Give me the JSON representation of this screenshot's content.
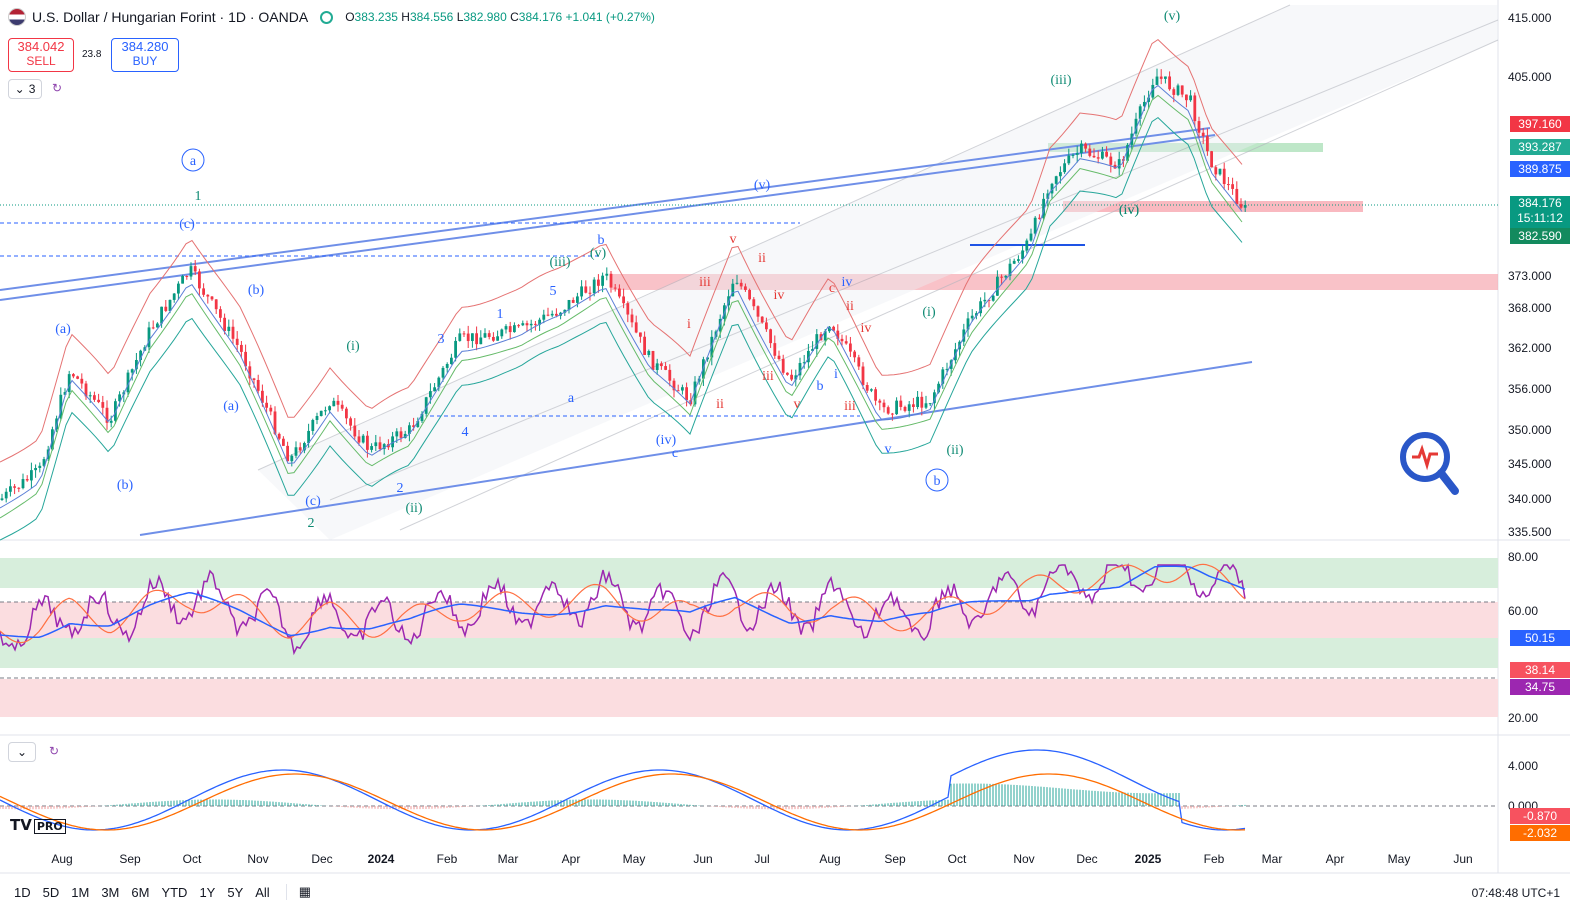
{
  "header": {
    "title": "U.S. Dollar / Hungarian Forint · 1D · OANDA",
    "open_label": "O",
    "open": "383.235",
    "high_label": "H",
    "high": "384.556",
    "low_label": "L",
    "low": "382.980",
    "close_label": "C",
    "close": "384.176",
    "change": "+1.041 (+0.27%)"
  },
  "trade": {
    "sell_price": "384.042",
    "sell_label": "SELL",
    "buy_price": "384.280",
    "buy_label": "BUY",
    "spread": "23.8"
  },
  "indicator_toggle": "3",
  "price_axis": [
    "415.000",
    "405.000",
    "373.000",
    "368.000",
    "362.000",
    "356.000",
    "350.000",
    "345.000",
    "340.000",
    "335.500"
  ],
  "price_badges": {
    "red_level": "397.160",
    "green_level": "393.287",
    "blue_level": "389.875",
    "last_price": "384.176",
    "countdown": "15:11:12",
    "low_level": "382.590"
  },
  "rsi_axis": [
    "80.00",
    "60.00",
    "20.00"
  ],
  "rsi_badges": {
    "ma": "50.15",
    "rsi_ma": "38.14",
    "rsi": "34.75"
  },
  "macd_axis": [
    "4.000",
    "0.000"
  ],
  "macd_badges": {
    "macd": "-0.870",
    "signal": "-2.032"
  },
  "time_axis": [
    "Aug",
    "Sep",
    "Oct",
    "Nov",
    "Dec",
    "2024",
    "Feb",
    "Mar",
    "Apr",
    "May",
    "Jun",
    "Jul",
    "Aug",
    "Sep",
    "Oct",
    "Nov",
    "Dec",
    "2025",
    "Feb",
    "Mar",
    "Apr",
    "May",
    "Jun"
  ],
  "wave_labels": [
    "(v)",
    "(iii)",
    "(iv)",
    "(v)",
    "a",
    "1",
    "(c)",
    "(b)",
    "(a)",
    "(i)",
    "(ii)",
    "(iii)",
    "(iv)",
    "(v)",
    "b",
    "v",
    "ii",
    "iii",
    "iv",
    "c",
    "(iv)",
    "(ii)",
    "b",
    "2",
    "(b)",
    "(a)",
    "(c)",
    "(i)",
    "i",
    "ii",
    "iii",
    "iv",
    "v",
    "a",
    "b",
    "c",
    "i",
    "ii",
    "iii",
    "iv",
    "v",
    "1",
    "2",
    "3",
    "4",
    "5"
  ],
  "timeframes": [
    "1D",
    "5D",
    "1M",
    "3M",
    "6M",
    "YTD",
    "1Y",
    "5Y",
    "All"
  ],
  "clock": "07:48:48 UTC+1",
  "logo": "PRO",
  "colors": {
    "up": "#089981",
    "down": "#f23645",
    "blue": "#2962ff",
    "wave_blue": "#2962ff",
    "wave_green": "#0e8a73",
    "wave_red": "#e53935"
  }
}
